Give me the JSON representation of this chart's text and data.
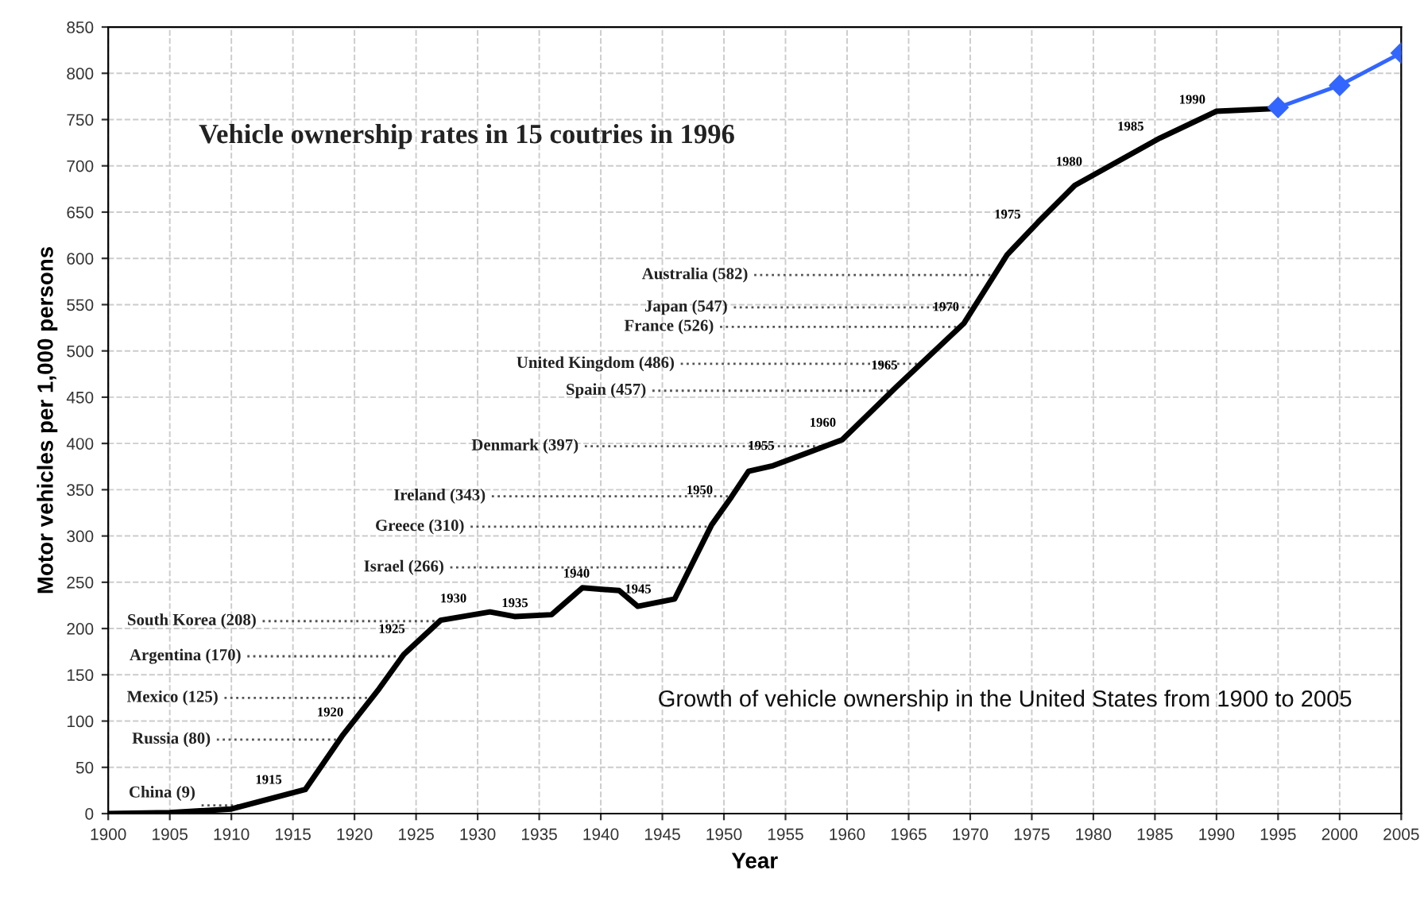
{
  "chart_data": {
    "type": "line",
    "xlabel": "Year",
    "ylabel": "Motor vehicles per 1,000 persons",
    "xlim": [
      1900,
      2005
    ],
    "ylim": [
      0,
      850
    ],
    "xticks": [
      1900,
      1905,
      1910,
      1915,
      1920,
      1925,
      1930,
      1935,
      1940,
      1945,
      1950,
      1955,
      1960,
      1965,
      1970,
      1975,
      1980,
      1985,
      1990,
      1995,
      2000,
      2005
    ],
    "yticks": [
      0,
      50,
      100,
      150,
      200,
      250,
      300,
      350,
      400,
      450,
      500,
      550,
      600,
      650,
      700,
      750,
      800,
      850
    ],
    "grid": true,
    "series": [
      {
        "color": "#000000",
        "marker": "none",
        "x": [
          1900,
          1905,
          1910,
          1916,
          1919,
          1922,
          1924,
          1927,
          1931,
          1933,
          1936,
          1938.5,
          1941.5,
          1943,
          1946,
          1949,
          1950.6,
          1952,
          1954,
          1959.6,
          1964,
          1969.5,
          1973,
          1975.5,
          1978.5,
          1985.4,
          1990,
          1995
        ],
        "values": [
          0,
          1,
          5,
          26,
          84,
          135,
          172,
          209,
          218,
          213,
          215,
          244,
          241,
          224,
          232,
          312,
          342,
          370,
          376,
          404,
          461,
          530,
          604,
          639,
          679,
          730,
          759,
          762
        ]
      },
      {
        "color": "#3366ff",
        "marker": "diamond",
        "x": [
          1995,
          2000,
          2005
        ],
        "values": [
          763,
          787,
          822
        ]
      }
    ],
    "ref_lines": [
      {
        "axis": "y",
        "value": 9,
        "label": "China (9)",
        "color": "#555555",
        "line_style": "dotted"
      },
      {
        "axis": "y",
        "value": 80,
        "label": "Russia (80)",
        "color": "#555555",
        "line_style": "dotted"
      },
      {
        "axis": "y",
        "value": 125,
        "label": "Mexico (125)",
        "color": "#555555",
        "line_style": "dotted"
      },
      {
        "axis": "y",
        "value": 170,
        "label": "Argentina (170)",
        "color": "#555555",
        "line_style": "dotted"
      },
      {
        "axis": "y",
        "value": 208,
        "label": "South Korea (208)",
        "color": "#555555",
        "line_style": "dotted"
      },
      {
        "axis": "y",
        "value": 266,
        "label": "Israel (266)",
        "color": "#555555",
        "line_style": "dotted"
      },
      {
        "axis": "y",
        "value": 310,
        "label": "Greece (310)",
        "color": "#555555",
        "line_style": "dotted"
      },
      {
        "axis": "y",
        "value": 343,
        "label": "Ireland (343)",
        "color": "#555555",
        "line_style": "dotted"
      },
      {
        "axis": "y",
        "value": 397,
        "label": "Denmark (397)",
        "color": "#555555",
        "line_style": "dotted"
      },
      {
        "axis": "y",
        "value": 457,
        "label": "Spain (457)",
        "color": "#555555",
        "line_style": "dotted"
      },
      {
        "axis": "y",
        "value": 486,
        "label": "United Kingdom (486)",
        "color": "#555555",
        "line_style": "dotted"
      },
      {
        "axis": "y",
        "value": 526,
        "label": "France (526)",
        "color": "#555555",
        "line_style": "dotted"
      },
      {
        "axis": "y",
        "value": 547,
        "label": "Japan (547)",
        "color": "#555555",
        "line_style": "dotted"
      },
      {
        "axis": "y",
        "value": 582,
        "label": "Australia (582)",
        "color": "#555555",
        "line_style": "dotted"
      }
    ],
    "annotations": [
      "Vehicle ownership rates in 15 coutries in 1996",
      "Growth of vehicle ownership in the United States from 1900 to 2005",
      {
        "text": "1915",
        "x": 1915,
        "y": 22
      },
      {
        "text": "1920",
        "x": 1920,
        "y": 95
      },
      {
        "text": "1925",
        "x": 1925,
        "y": 185
      },
      {
        "text": "1930",
        "x": 1930,
        "y": 218
      },
      {
        "text": "1935",
        "x": 1935,
        "y": 213
      },
      {
        "text": "1940",
        "x": 1940,
        "y": 245
      },
      {
        "text": "1945",
        "x": 1945,
        "y": 228
      },
      {
        "text": "1950",
        "x": 1950,
        "y": 335
      },
      {
        "text": "1955",
        "x": 1955,
        "y": 383
      },
      {
        "text": "1960",
        "x": 1960,
        "y": 408
      },
      {
        "text": "1965",
        "x": 1965,
        "y": 470
      },
      {
        "text": "1970",
        "x": 1970,
        "y": 533
      },
      {
        "text": "1975",
        "x": 1975,
        "y": 633
      },
      {
        "text": "1980",
        "x": 1980,
        "y": 690
      },
      {
        "text": "1985",
        "x": 1985,
        "y": 728
      },
      {
        "text": "1990",
        "x": 1990,
        "y": 757
      }
    ]
  }
}
